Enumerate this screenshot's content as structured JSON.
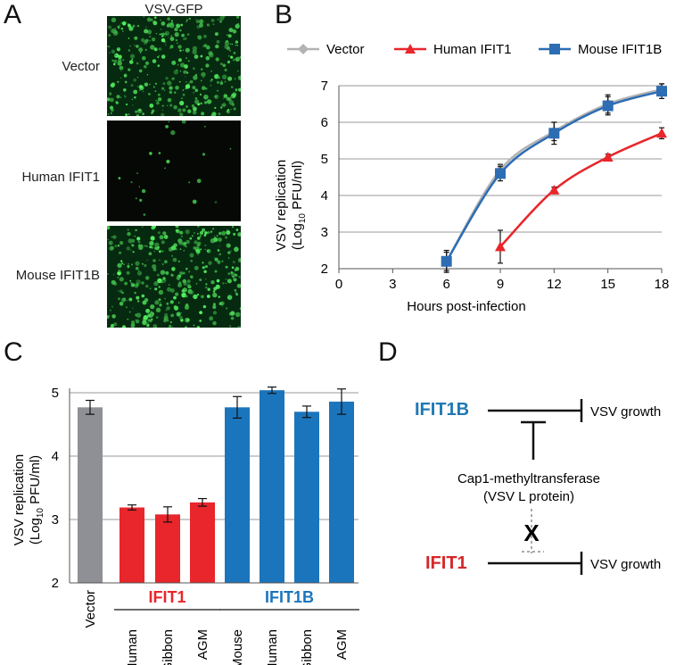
{
  "panelA": {
    "letter": "A",
    "header": "VSV-GFP",
    "rows": [
      {
        "label": "Vector",
        "green_density": 0.85
      },
      {
        "label": "Human IFIT1",
        "green_density": 0.04
      },
      {
        "label": "Mouse IFIT1B",
        "green_density": 0.9
      }
    ]
  },
  "panelD": {
    "letter": "D",
    "ifit1b": "IFIT1B",
    "vsv_growth_top": "VSV growth",
    "enzyme_line1": "Cap1-methyltransferase",
    "enzyme_line2": "(VSV L protein)",
    "x_mark": "X",
    "ifit1": "IFIT1",
    "vsv_growth_bottom": "VSV growth",
    "colors": {
      "ifit1b": "#1f78b4",
      "ifit1": "#d62728"
    }
  },
  "chart_data": [
    {
      "panel": "B",
      "type": "line",
      "x": [
        6,
        9,
        12,
        15,
        18
      ],
      "xlim": [
        0,
        18
      ],
      "xticks": [
        "0",
        "3",
        "6",
        "9",
        "12",
        "15",
        "18"
      ],
      "ylim": [
        2,
        7
      ],
      "yticks": [
        "2",
        "3",
        "4",
        "5",
        "6",
        "7"
      ],
      "xlabel": "Hours post-infection",
      "ylabel_line1": "VSV replication",
      "ylabel_line2_pre": "(Log",
      "ylabel_line2_sub": "10",
      "ylabel_line2_post": " PFU/ml)",
      "grid": true,
      "legend_position": "top",
      "series": [
        {
          "name": "Vector",
          "color": "#b3b3b3",
          "marker": "diamond",
          "points": [
            [
              6,
              2.2,
              0.25
            ],
            [
              9,
              4.7,
              0.15
            ],
            [
              12,
              5.75,
              0.25
            ],
            [
              15,
              6.5,
              0.25
            ],
            [
              18,
              6.9,
              0.15
            ]
          ]
        },
        {
          "name": "Human IFIT1",
          "color": "#e8262b",
          "marker": "triangle",
          "points": [
            [
              9,
              2.6,
              0.45
            ],
            [
              12,
              4.15,
              0.08
            ],
            [
              15,
              5.05,
              0.08
            ],
            [
              18,
              5.7,
              0.15
            ]
          ]
        },
        {
          "name": "Mouse IFIT1B",
          "color": "#2d6db4",
          "marker": "square",
          "points": [
            [
              6,
              2.2,
              0.3
            ],
            [
              9,
              4.6,
              0.2
            ],
            [
              12,
              5.7,
              0.3
            ],
            [
              15,
              6.45,
              0.25
            ],
            [
              18,
              6.85,
              0.2
            ]
          ]
        }
      ]
    },
    {
      "panel": "C",
      "type": "bar",
      "categories": [
        "Vector",
        "Human",
        "Gibbon",
        "AGM",
        "Mouse",
        "Human",
        "Gibbon",
        "AGM"
      ],
      "values": [
        4.77,
        3.19,
        3.08,
        3.27,
        4.77,
        5.04,
        4.7,
        4.86
      ],
      "errors": [
        0.11,
        0.04,
        0.12,
        0.06,
        0.17,
        0.05,
        0.09,
        0.2
      ],
      "colors": [
        "#8e9096",
        "#e8262b",
        "#e8262b",
        "#e8262b",
        "#1b75bc",
        "#1b75bc",
        "#1b75bc",
        "#1b75bc"
      ],
      "ylim": [
        2,
        5
      ],
      "yticks": [
        "2",
        "3",
        "4",
        "5"
      ],
      "ylabel_line1": "VSV replication",
      "ylabel_line2_pre": "(Log",
      "ylabel_line2_sub": "10",
      "ylabel_line2_post": " PFU/ml)",
      "grid": true,
      "groups": [
        {
          "label": "IFIT1",
          "color": "#e8262b",
          "from": 1,
          "to": 3
        },
        {
          "label": "IFIT1B",
          "color": "#1b75bc",
          "from": 4,
          "to": 7
        }
      ]
    }
  ]
}
